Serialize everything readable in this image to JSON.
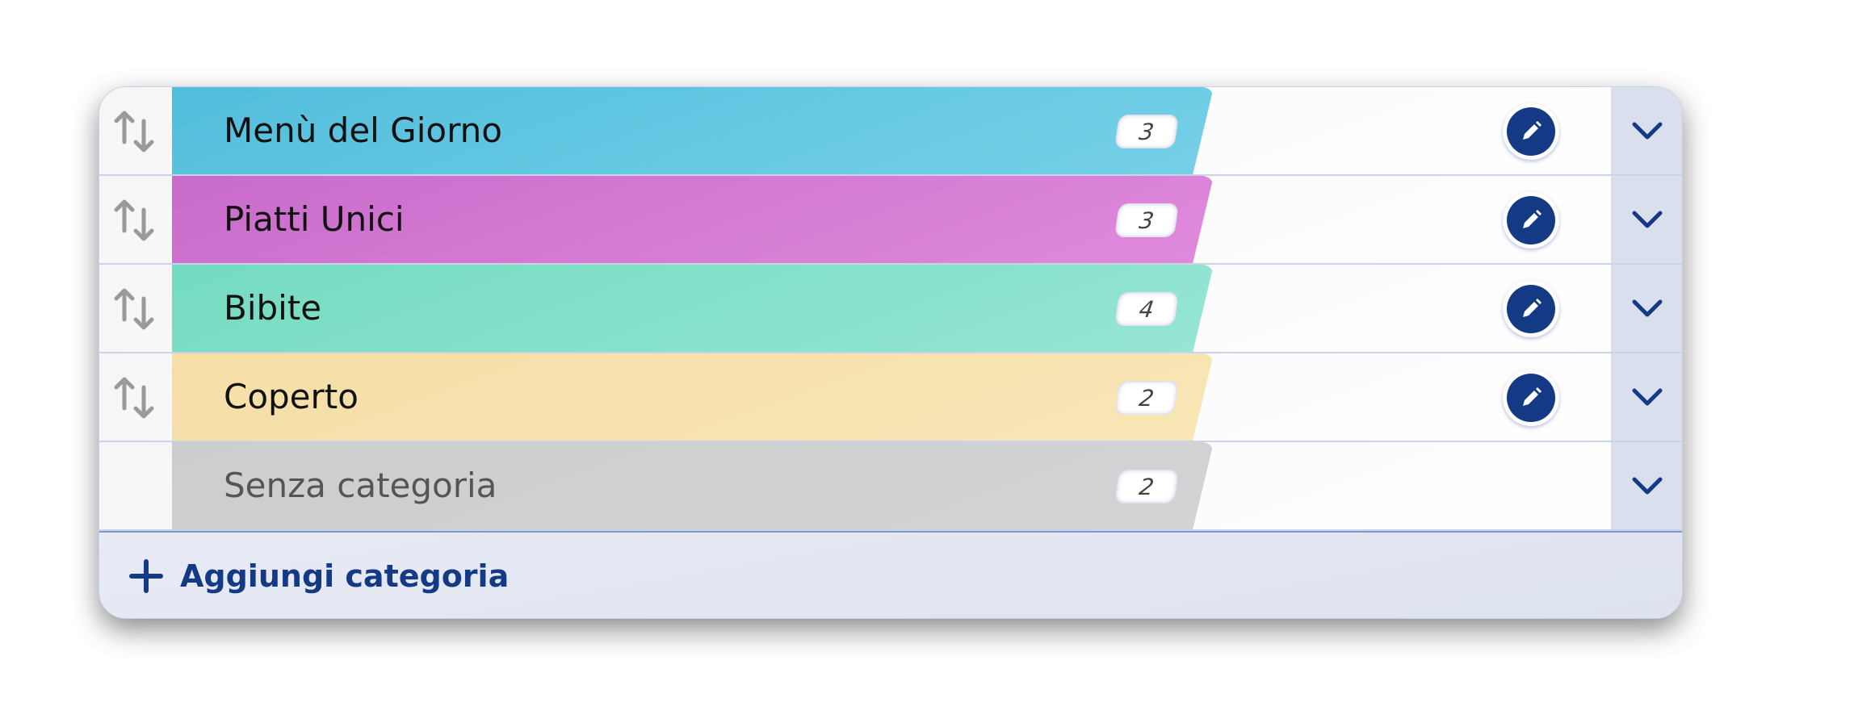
{
  "categories": [
    {
      "name": "Menù del Giorno",
      "count": "3",
      "color": "#57c2de",
      "sortable": true,
      "editable": true
    },
    {
      "name": "Piatti Unici",
      "count": "3",
      "color": "#d67cd4",
      "sortable": true,
      "editable": true
    },
    {
      "name": "Bibite",
      "count": "4",
      "color": "#85e0c8",
      "sortable": true,
      "editable": true
    },
    {
      "name": "Coperto",
      "count": "2",
      "color": "#f7e2ad",
      "sortable": true,
      "editable": true
    },
    {
      "name": "Senza categoria",
      "count": "2",
      "color": "#d0d0d2",
      "sortable": false,
      "editable": false
    }
  ],
  "footer": {
    "add_label": "Aggiungi categoria",
    "icon": "plus-icon"
  },
  "icons": {
    "handle": "sort-arrows-icon",
    "edit": "pencil-icon",
    "expand": "chevron-down-icon"
  },
  "colors": {
    "accent": "#153a85"
  }
}
